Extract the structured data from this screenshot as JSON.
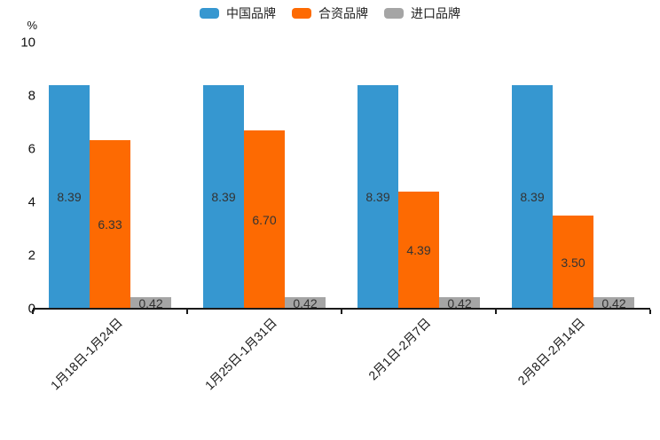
{
  "legend": {
    "items": [
      {
        "label": "中国品牌",
        "color": "#3697D0"
      },
      {
        "label": "合资品牌",
        "color": "#FD6A02"
      },
      {
        "label": "进口品牌",
        "color": "#A5A5A5"
      }
    ]
  },
  "chart_data": {
    "type": "bar",
    "title": "",
    "categories": [
      "1月18日-1月24日",
      "1月25日-1月31日",
      "2月1日-2月7日",
      "2月8日-2月14日"
    ],
    "series": [
      {
        "name": "中国品牌",
        "color": "#3697D0",
        "values": [
          8.39,
          8.39,
          8.39,
          8.39
        ]
      },
      {
        "name": "合资品牌",
        "color": "#FD6A02",
        "values": [
          6.33,
          6.7,
          4.39,
          3.5
        ]
      },
      {
        "name": "进口品牌",
        "color": "#A5A5A5",
        "values": [
          0.42,
          0.42,
          0.42,
          0.42
        ]
      }
    ],
    "value_label_format": "2dp",
    "xlabel": "",
    "ylabel": "%",
    "yticks": [
      0,
      2,
      4,
      6,
      8,
      10
    ],
    "ylim": [
      0,
      10
    ],
    "grid": false,
    "legend_position": "top"
  }
}
